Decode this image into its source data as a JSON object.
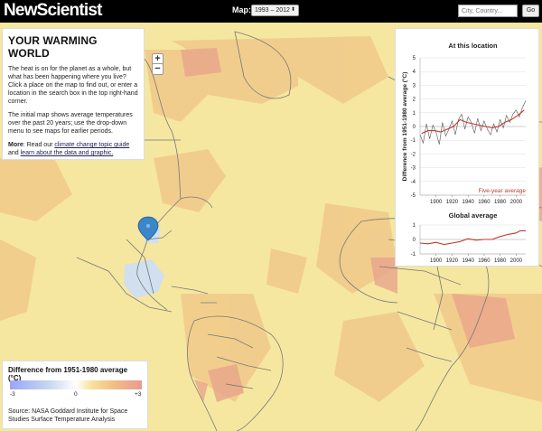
{
  "header": {
    "logo": "NewScientist",
    "map_label": "Map:",
    "map_select_value": "1993 – 2012",
    "search_placeholder": "City, Country...",
    "go_label": "Go"
  },
  "zoom": {
    "in_label": "+",
    "out_label": "−"
  },
  "info": {
    "title": "YOUR WARMING WORLD",
    "p1": "The heat is on for the planet as a whole, but what has been happening where you live? Click a place on the map to find out, or enter a location in the search box in the top right-hand corner.",
    "p2": "The initial map shows average temperatures over the past 20 years; use the drop-down menu to see maps for earlier periods.",
    "more_label": "More",
    "more_sep": ": Read our ",
    "link1": "climate change topic guide",
    "more_and": " and ",
    "link2": "learn about the data and graphic."
  },
  "legend": {
    "title": "Difference from 1951-1980 average (°C)",
    "min_label": "-3",
    "mid_label": "0",
    "max_label": "+3",
    "source": "Source: NASA Goddard Institute for Space Studies Surface Temperature Analysis"
  },
  "colors": {
    "map_base": "#f5e7a0",
    "warm": "#f0c080",
    "hot": "#e9a08a",
    "cool": "#c9dcf5",
    "land_border": "#777777",
    "marker": "#3a86c8",
    "local_line": "#555555",
    "average_line": "#c0392b"
  },
  "marker_icon": "map-pin-icon",
  "chart_data": [
    {
      "type": "line",
      "title": "At this location",
      "ylabel": "Difference from 1951-1980 average (°C)",
      "ylim": [
        -5,
        5
      ],
      "yticks": [
        "5",
        "4",
        "3",
        "2",
        "1",
        "0",
        "-1",
        "-2",
        "-3",
        "-4",
        "-5"
      ],
      "xticks": [
        "1900",
        "1920",
        "1940",
        "1960",
        "1980",
        "2000"
      ],
      "xlim": [
        1880,
        2012
      ],
      "series": [
        {
          "name": "",
          "x": [
            1880,
            1884,
            1888,
            1892,
            1896,
            1900,
            1904,
            1908,
            1912,
            1916,
            1920,
            1924,
            1928,
            1932,
            1936,
            1940,
            1944,
            1948,
            1952,
            1956,
            1960,
            1964,
            1968,
            1972,
            1976,
            1980,
            1984,
            1988,
            1992,
            1996,
            2000,
            2004,
            2008,
            2012
          ],
          "values": [
            -0.6,
            -1.2,
            0.2,
            -0.9,
            0.1,
            -0.4,
            -1.3,
            0.3,
            -0.7,
            -0.2,
            0.4,
            -0.6,
            0.5,
            0.9,
            -0.2,
            0.7,
            0.3,
            -0.5,
            0.6,
            -0.3,
            0.4,
            -0.2,
            -0.6,
            0.2,
            -0.4,
            0.5,
            -0.1,
            0.8,
            0.3,
            0.9,
            1.2,
            0.7,
            1.4,
            1.9
          ]
        },
        {
          "name": "Five-year average",
          "x": [
            1882,
            1890,
            1898,
            1906,
            1914,
            1922,
            1930,
            1938,
            1946,
            1954,
            1962,
            1970,
            1978,
            1986,
            1994,
            2002,
            2010
          ],
          "values": [
            -0.5,
            -0.3,
            -0.3,
            -0.4,
            -0.2,
            0.0,
            0.5,
            0.3,
            0.2,
            0.1,
            0.0,
            -0.1,
            0.0,
            0.3,
            0.5,
            0.8,
            1.2
          ]
        }
      ]
    },
    {
      "type": "line",
      "title": "Global average",
      "ylim": [
        -1,
        1
      ],
      "yticks": [
        "1",
        "0",
        "-1"
      ],
      "xticks": [
        "1900",
        "1920",
        "1940",
        "1960",
        "1980",
        "2000"
      ],
      "xlim": [
        1880,
        2012
      ],
      "series": [
        {
          "name": "",
          "x": [
            1880,
            1890,
            1900,
            1910,
            1920,
            1930,
            1940,
            1950,
            1960,
            1970,
            1980,
            1990,
            2000,
            2005,
            2012
          ],
          "values": [
            -0.25,
            -0.3,
            -0.2,
            -0.35,
            -0.25,
            -0.15,
            0.05,
            -0.05,
            0.0,
            0.0,
            0.2,
            0.35,
            0.45,
            0.6,
            0.6
          ]
        }
      ]
    }
  ]
}
